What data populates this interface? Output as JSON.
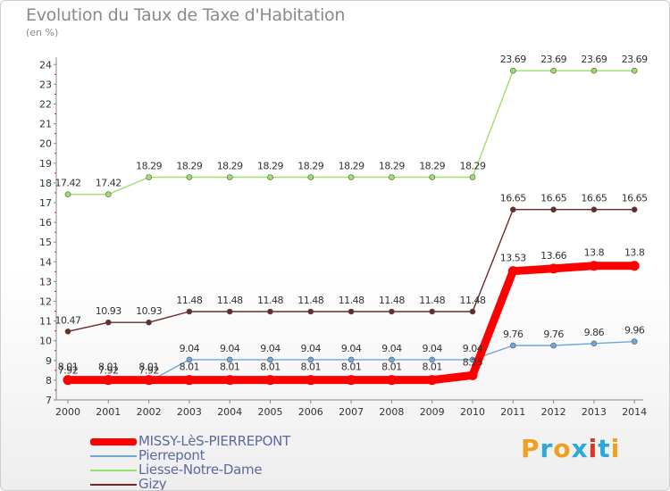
{
  "title": "Evolution du Taux de Taxe d'Habitation",
  "subtitle": "(en %)",
  "logo": {
    "text": "Proxiti",
    "colors": [
      "#f0a020",
      "#2ea8d8",
      "#f0a020",
      "#2ea8d8",
      "#e83020",
      "#2ea8d8",
      "#f0a020"
    ]
  },
  "chart_data": {
    "type": "line",
    "x": [
      "2000",
      "2001",
      "2002",
      "2003",
      "2004",
      "2005",
      "2006",
      "2007",
      "2008",
      "2009",
      "2010",
      "2011",
      "2012",
      "2013",
      "2014"
    ],
    "ylim": [
      7,
      24
    ],
    "yticks": [
      7,
      8,
      9,
      10,
      11,
      12,
      13,
      14,
      15,
      16,
      17,
      18,
      19,
      20,
      21,
      22,
      23,
      24
    ],
    "grid": false,
    "legend_placement": "bottom-left",
    "series": [
      {
        "name": "Gizy",
        "color": "#6b2a2a",
        "values": [
          10.47,
          10.93,
          10.93,
          11.48,
          11.48,
          11.48,
          11.48,
          11.48,
          11.48,
          11.48,
          11.48,
          16.65,
          16.65,
          16.65,
          16.65
        ],
        "labels": [
          "10.47",
          "10.93",
          "10.93",
          "11.48",
          "11.48",
          "11.48",
          "11.48",
          "11.48",
          "11.48",
          "11.48",
          "11.48",
          "16.65",
          "16.65",
          "16.65",
          "16.65"
        ]
      },
      {
        "name": "Liesse-Notre-Dame",
        "color": "#9be06a",
        "values": [
          17.42,
          17.42,
          18.29,
          18.29,
          18.29,
          18.29,
          18.29,
          18.29,
          18.29,
          18.29,
          18.29,
          23.69,
          23.69,
          23.69,
          23.69
        ],
        "labels": [
          "17.42",
          "17.42",
          "18.29",
          "18.29",
          "18.29",
          "18.29",
          "18.29",
          "18.29",
          "18.29",
          "18.29",
          "18.29",
          "23.69",
          "23.69",
          "23.69",
          "23.69"
        ]
      },
      {
        "name": "Pierrepont",
        "color": "#6fa8d8",
        "values": [
          7.92,
          7.92,
          7.92,
          9.04,
          9.04,
          9.04,
          9.04,
          9.04,
          9.04,
          9.04,
          9.04,
          9.76,
          9.76,
          9.86,
          9.96
        ],
        "labels": [
          "7.92",
          "7.92",
          "7.92",
          "9.04",
          "9.04",
          "9.04",
          "9.04",
          "9.04",
          "9.04",
          "9.04",
          "9.04",
          "9.76",
          "9.76",
          "9.86",
          "9.96"
        ]
      },
      {
        "name": "MISSY-LèS-PIERREPONT",
        "color": "#ff0000",
        "values": [
          8.01,
          8.01,
          8.01,
          8.01,
          8.01,
          8.01,
          8.01,
          8.01,
          8.01,
          8.01,
          8.25,
          13.53,
          13.66,
          13.8,
          13.8
        ],
        "labels": [
          "8.01",
          "8.01",
          "8.01",
          "8.01",
          "8.01",
          "8.01",
          "8.01",
          "8.01",
          "8.01",
          "8.01",
          "8.25",
          "13.53",
          "13.66",
          "13.8",
          "13.8"
        ]
      }
    ],
    "legend": [
      {
        "name": "MISSY-LèS-PIERREPONT",
        "color": "#ff0000"
      },
      {
        "name": "Pierrepont",
        "color": "#6fa8d8"
      },
      {
        "name": "Liesse-Notre-Dame",
        "color": "#9be06a"
      },
      {
        "name": "Gizy",
        "color": "#6b2a2a"
      }
    ]
  }
}
